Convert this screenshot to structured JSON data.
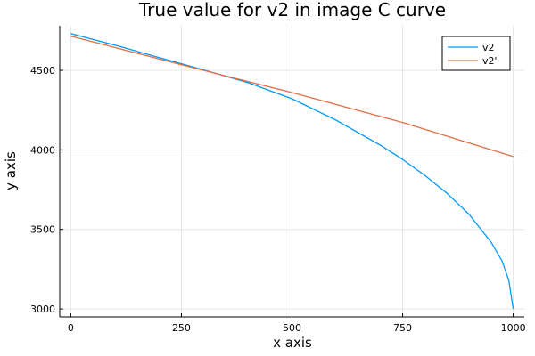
{
  "chart_data": {
    "type": "line",
    "title": "True value for v2 in image C curve",
    "xlabel": "x axis",
    "ylabel": "y axis",
    "xlim": [
      -25,
      1025
    ],
    "ylim": [
      2950,
      4780
    ],
    "xticks": [
      0,
      250,
      500,
      750,
      1000
    ],
    "yticks": [
      3000,
      3500,
      4000,
      4500
    ],
    "xtick_labels": [
      "0",
      "250",
      "500",
      "750",
      "1000"
    ],
    "ytick_labels": [
      "3000",
      "3500",
      "4000",
      "4500"
    ],
    "grid": true,
    "legend_position": "top-right",
    "series": [
      {
        "name": "v2",
        "color": "#009af9",
        "x": [
          0,
          100,
          200,
          300,
          400,
          500,
          600,
          700,
          750,
          800,
          850,
          900,
          950,
          975,
          990,
          1000
        ],
        "y": [
          4731,
          4658,
          4580,
          4503,
          4423,
          4321,
          4186,
          4029,
          3940,
          3840,
          3728,
          3595,
          3420,
          3300,
          3180,
          3000
        ]
      },
      {
        "name": "v2'",
        "color": "#e26f46",
        "x": [
          0,
          250,
          500,
          750,
          1000
        ],
        "y": [
          4715,
          4535,
          4360,
          4172,
          3958
        ]
      }
    ]
  }
}
